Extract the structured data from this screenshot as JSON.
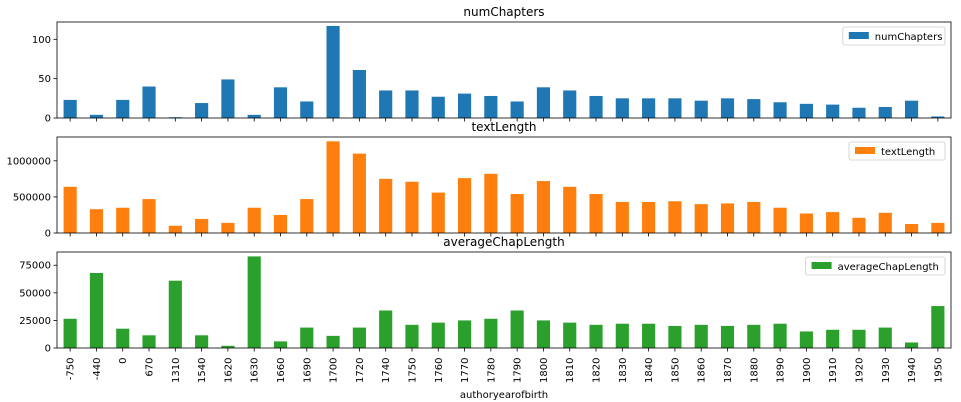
{
  "chart_data": {
    "type": "bar",
    "xlabel": "authoryearofbirth",
    "categories": [
      "-750",
      "-440",
      "0",
      "670",
      "1310",
      "1540",
      "1620",
      "1630",
      "1660",
      "1690",
      "1700",
      "1720",
      "1740",
      "1750",
      "1760",
      "1770",
      "1780",
      "1790",
      "1800",
      "1810",
      "1820",
      "1830",
      "1840",
      "1850",
      "1860",
      "1870",
      "1880",
      "1890",
      "1900",
      "1910",
      "1920",
      "1930",
      "1940",
      "1950"
    ],
    "subplots": [
      {
        "title": "numChapters",
        "color": "#1f77b4",
        "legend": "numChapters",
        "legend_position": "upper-right",
        "ylim": [
          0,
          122
        ],
        "yticks": [
          0,
          50,
          100
        ],
        "values": [
          23,
          4,
          23,
          40,
          1,
          19,
          49,
          4,
          39,
          21,
          117,
          61,
          35,
          35,
          27,
          31,
          28,
          21,
          39,
          35,
          28,
          25,
          25,
          25,
          22,
          25,
          24,
          20,
          18,
          17,
          13,
          14,
          22,
          2
        ]
      },
      {
        "title": "textLength",
        "color": "#ff7f0e",
        "legend": "textLength",
        "legend_position": "upper-right",
        "ylim": [
          0,
          1330000
        ],
        "yticks": [
          0,
          500000,
          1000000
        ],
        "values": [
          640000,
          330000,
          350000,
          470000,
          100000,
          195000,
          140000,
          350000,
          250000,
          470000,
          1270000,
          1100000,
          750000,
          710000,
          560000,
          760000,
          820000,
          540000,
          720000,
          640000,
          540000,
          430000,
          430000,
          440000,
          400000,
          410000,
          430000,
          350000,
          270000,
          290000,
          210000,
          280000,
          125000,
          140000
        ]
      },
      {
        "title": "averageChapLength",
        "color": "#2ca02c",
        "legend": "averageChapLength",
        "legend_position": "upper-right",
        "ylim": [
          0,
          87000
        ],
        "yticks": [
          0,
          25000,
          50000,
          75000
        ],
        "values": [
          26500,
          68000,
          17500,
          11500,
          61000,
          11500,
          2000,
          83000,
          6000,
          18500,
          11000,
          18500,
          34000,
          21000,
          23000,
          25000,
          26500,
          34000,
          25000,
          23000,
          21000,
          22000,
          22000,
          20000,
          21000,
          20000,
          21000,
          22000,
          15000,
          16500,
          16500,
          18500,
          5000,
          38000
        ]
      }
    ]
  }
}
